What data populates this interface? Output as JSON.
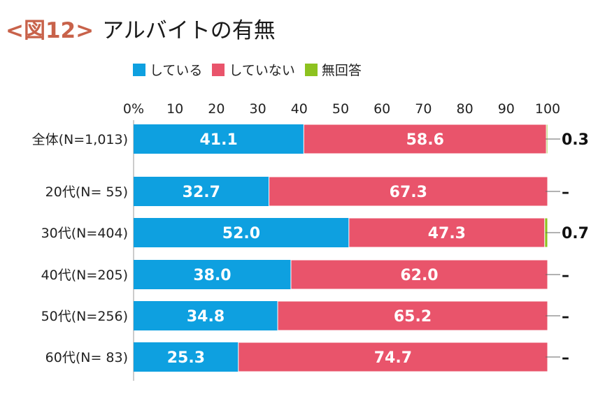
{
  "title": {
    "fig_label": "<図12>",
    "main": "アルバイトの有無"
  },
  "chart_data": {
    "type": "bar",
    "orientation": "horizontal-stacked",
    "xlim": [
      0,
      100
    ],
    "x_ticks": [
      "0%",
      "10",
      "20",
      "30",
      "40",
      "50",
      "60",
      "70",
      "80",
      "90",
      "100"
    ],
    "categories": [
      "全体(N=1,013)",
      "20代(N= 55)",
      "30代(N=404)",
      "40代(N=205)",
      "50代(N=256)",
      "60代(N= 83)"
    ],
    "series": [
      {
        "name": "している",
        "color": "#0ea0e0",
        "values": [
          41.1,
          32.7,
          52.0,
          38.0,
          34.8,
          25.3
        ],
        "labels": [
          "41.1",
          "32.7",
          "52.0",
          "38.0",
          "34.8",
          "25.3"
        ]
      },
      {
        "name": "していない",
        "color": "#e9546b",
        "values": [
          58.6,
          67.3,
          47.3,
          62.0,
          65.2,
          74.7
        ],
        "labels": [
          "58.6",
          "67.3",
          "47.3",
          "62.0",
          "65.2",
          "74.7"
        ]
      },
      {
        "name": "無回答",
        "color": "#8dc21f",
        "values": [
          0.3,
          0,
          0.7,
          0,
          0,
          0
        ],
        "labels": [
          "0.3",
          "–",
          "0.7",
          "–",
          "–",
          "–"
        ]
      }
    ],
    "legend_position": "top-left"
  }
}
